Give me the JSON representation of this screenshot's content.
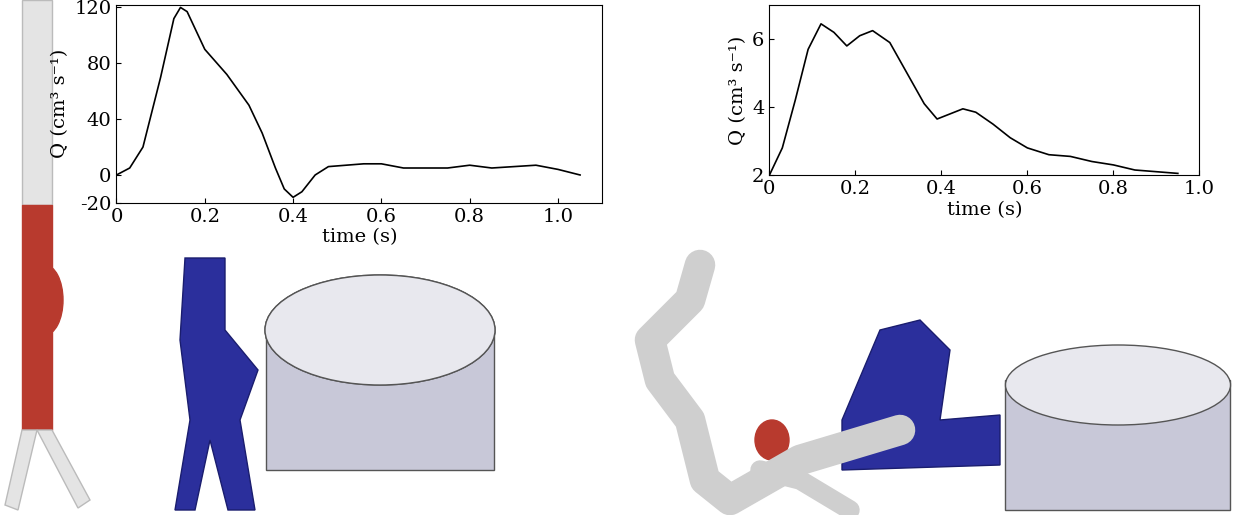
{
  "chart_data": [
    {
      "type": "line",
      "xlabel": "time (s)",
      "ylabel": "Q (cm³ s⁻¹)",
      "color": "#000000",
      "x": [
        0,
        0.03,
        0.06,
        0.1,
        0.13,
        0.145,
        0.16,
        0.2,
        0.25,
        0.3,
        0.33,
        0.36,
        0.38,
        0.4,
        0.42,
        0.45,
        0.48,
        0.52,
        0.56,
        0.6,
        0.65,
        0.7,
        0.75,
        0.8,
        0.85,
        0.9,
        0.95,
        1.0,
        1.05
      ],
      "values": [
        0,
        5,
        20,
        70,
        112,
        120,
        117,
        90,
        72,
        50,
        30,
        5,
        -10,
        -16,
        -12,
        0,
        6,
        7,
        8,
        8,
        5,
        5,
        5,
        7,
        5,
        6,
        7,
        4,
        0
      ],
      "xlim": [
        0,
        1.1
      ],
      "ylim": [
        -20,
        122
      ],
      "xticks": [
        0,
        0.2,
        0.4,
        0.6,
        0.8,
        1.0
      ],
      "yticks": [
        -20,
        0,
        40,
        80,
        120
      ]
    },
    {
      "type": "line",
      "xlabel": "time (s)",
      "ylabel": "Q (cm³ s⁻¹)",
      "color": "#000000",
      "x": [
        0,
        0.03,
        0.06,
        0.09,
        0.12,
        0.15,
        0.18,
        0.21,
        0.24,
        0.28,
        0.32,
        0.36,
        0.39,
        0.42,
        0.45,
        0.48,
        0.52,
        0.56,
        0.6,
        0.65,
        0.7,
        0.75,
        0.8,
        0.85,
        0.9,
        0.95
      ],
      "values": [
        2.0,
        2.8,
        4.2,
        5.7,
        6.45,
        6.2,
        5.8,
        6.1,
        6.25,
        5.9,
        5.0,
        4.1,
        3.65,
        3.8,
        3.95,
        3.85,
        3.5,
        3.1,
        2.8,
        2.6,
        2.55,
        2.4,
        2.3,
        2.15,
        2.1,
        2.05
      ],
      "xlim": [
        0,
        1.0
      ],
      "ylim": [
        2,
        7
      ],
      "xticks": [
        0,
        0.2,
        0.4,
        0.6,
        0.8,
        1.0
      ],
      "yticks": [
        2,
        4,
        6
      ]
    }
  ]
}
